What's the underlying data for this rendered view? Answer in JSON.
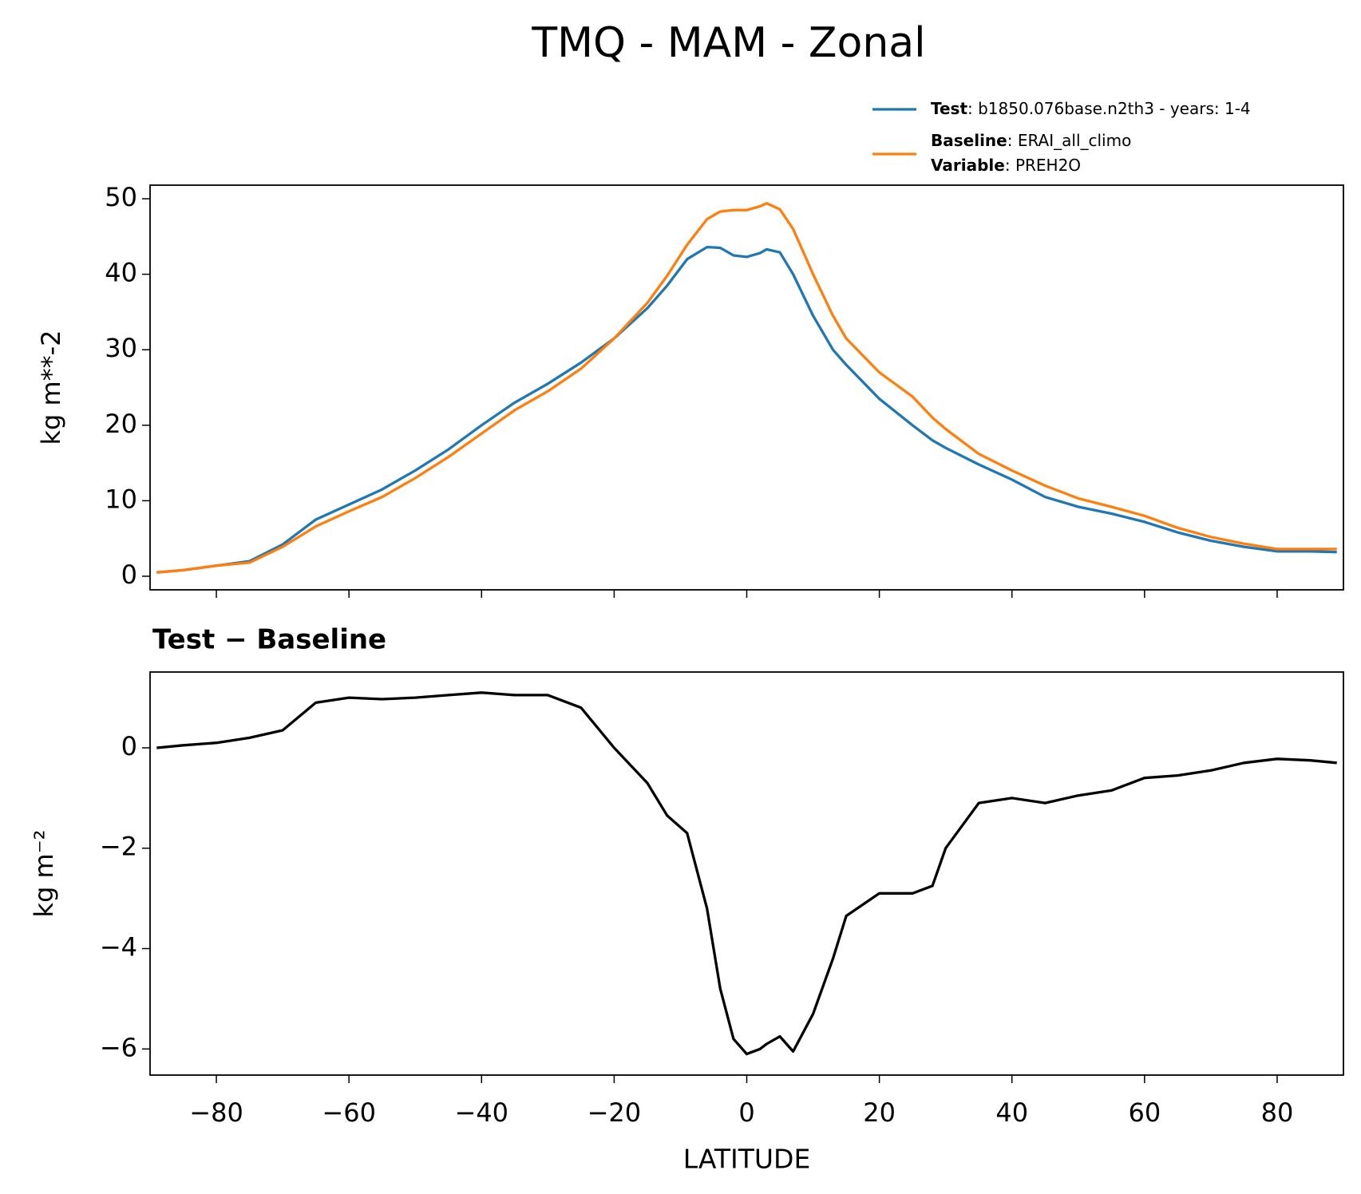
{
  "chart_data": [
    {
      "type": "line",
      "title": "TMQ - MAM - Zonal",
      "ylabel": "kg m**-2",
      "x": [
        -89,
        -85,
        -80,
        -75,
        -70,
        -65,
        -60,
        -55,
        -50,
        -45,
        -40,
        -35,
        -30,
        -25,
        -20,
        -15,
        -12,
        -9,
        -6,
        -4,
        -2,
        0,
        2,
        3,
        5,
        7,
        10,
        13,
        15,
        20,
        25,
        28,
        30,
        35,
        40,
        45,
        50,
        55,
        60,
        65,
        70,
        75,
        80,
        85,
        89
      ],
      "series": [
        {
          "name": "Test",
          "detail": ": b1850.076base.n2th3 - years: 1-4",
          "color": "#1f77b4",
          "values": [
            0.5,
            0.8,
            1.4,
            2.0,
            4.2,
            7.5,
            9.5,
            11.5,
            14,
            16.8,
            20,
            23,
            25.5,
            28.3,
            31.5,
            35.5,
            38.5,
            42,
            43.6,
            43.5,
            42.5,
            42.3,
            42.8,
            43.3,
            42.9,
            40,
            34.5,
            30,
            28,
            23.5,
            20,
            18,
            17,
            14.8,
            12.8,
            10.5,
            9.2,
            8.3,
            7.2,
            5.8,
            4.7,
            3.9,
            3.3,
            3.3,
            3.2
          ]
        },
        {
          "name": "Baseline",
          "detail": ": ERAI_all_climo",
          "color": "#ff7f0e",
          "values": [
            0.5,
            0.8,
            1.4,
            1.8,
            3.9,
            6.6,
            8.6,
            10.5,
            13,
            15.8,
            18.9,
            22,
            24.5,
            27.5,
            31.5,
            36.2,
            39.8,
            43.9,
            47.3,
            48.3,
            48.5,
            48.5,
            49,
            49.4,
            48.6,
            46,
            40,
            34.5,
            31.5,
            27,
            23.8,
            21,
            19.5,
            16.2,
            14,
            12,
            10.3,
            9.2,
            8,
            6.4,
            5.2,
            4.3,
            3.6,
            3.6,
            3.6
          ]
        }
      ],
      "legend_extra": {
        "name": "Variable",
        "detail": ": PREH2O"
      },
      "xlim": [
        -90,
        90
      ],
      "xticks": [
        -80,
        -60,
        -40,
        -20,
        0,
        20,
        40,
        60,
        80
      ],
      "ylim": [
        -1.8,
        51.8
      ],
      "yticks": [
        0,
        10,
        20,
        30,
        40,
        50
      ]
    },
    {
      "type": "line",
      "title": "Test − Baseline",
      "ylabel": "kg m⁻²",
      "xlabel": "LATITUDE",
      "x": [
        -89,
        -85,
        -80,
        -75,
        -70,
        -65,
        -60,
        -55,
        -50,
        -45,
        -40,
        -35,
        -30,
        -25,
        -20,
        -15,
        -12,
        -9,
        -6,
        -4,
        -2,
        0,
        2,
        3,
        5,
        7,
        10,
        13,
        15,
        20,
        25,
        28,
        30,
        35,
        40,
        45,
        50,
        55,
        60,
        65,
        70,
        75,
        80,
        85,
        89
      ],
      "series": [
        {
          "color": "#000000",
          "values": [
            0,
            0.05,
            0.1,
            0.2,
            0.35,
            0.9,
            1.0,
            0.97,
            1.0,
            1.05,
            1.1,
            1.05,
            1.05,
            0.8,
            0,
            -0.7,
            -1.35,
            -1.7,
            -3.2,
            -4.8,
            -5.8,
            -6.1,
            -6.0,
            -5.9,
            -5.75,
            -6.05,
            -5.3,
            -4.2,
            -3.35,
            -2.9,
            -2.9,
            -2.75,
            -2.0,
            -1.1,
            -1.0,
            -1.1,
            -0.95,
            -0.85,
            -0.6,
            -0.55,
            -0.45,
            -0.3,
            -0.22,
            -0.25,
            -0.3
          ]
        }
      ],
      "xlim": [
        -90,
        90
      ],
      "xticks": [
        {
          "value": -80,
          "label": "−80"
        },
        {
          "value": -60,
          "label": "−60"
        },
        {
          "value": -40,
          "label": "−40"
        },
        {
          "value": -20,
          "label": "−20"
        },
        0,
        20,
        40,
        60,
        80
      ],
      "ylim": [
        -6.52,
        1.51
      ],
      "yticks": [
        {
          "value": -6,
          "label": "−6"
        },
        {
          "value": -4,
          "label": "−4"
        },
        {
          "value": -2,
          "label": "−2"
        },
        0
      ]
    }
  ]
}
